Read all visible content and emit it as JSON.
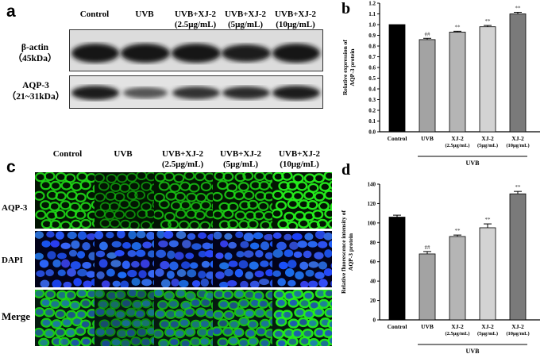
{
  "panel_a": {
    "letter": "a",
    "columns": [
      "Control",
      "UVB",
      "UVB+XJ-2\n(2.5μg/mL)",
      "UVB+XJ-2\n(5μg/mL)",
      "UVB+XJ-2\n(10μg/mL)"
    ],
    "rows": [
      {
        "name": "β-actin",
        "size": "（45kDa）"
      },
      {
        "name": "AQP-3",
        "size": "（21~31kDa）"
      }
    ]
  },
  "panel_c": {
    "letter": "c",
    "columns": [
      "Control",
      "UVB",
      "UVB+XJ-2\n(2.5μg/mL)",
      "UVB+XJ-2\n(5μg/mL)",
      "UVB+XJ-2\n(10μg/mL)"
    ],
    "rows": [
      "AQP-3",
      "DAPI",
      "Merge"
    ]
  },
  "chart_data": [
    {
      "panel": "b",
      "type": "bar",
      "categories": [
        "Control",
        "UVB",
        "XJ-2\n(2.5μg/mL)",
        "XJ-2\n(5μg/mL)",
        "XJ-2\n(10μg/mL)"
      ],
      "values": [
        1.0,
        0.86,
        0.93,
        0.98,
        1.1
      ],
      "errors": [
        0.0,
        0.012,
        0.008,
        0.012,
        0.015
      ],
      "annotations": [
        "",
        "##",
        "**",
        "**",
        "**"
      ],
      "colors": [
        "#000000",
        "#a3a3a3",
        "#b5b5b5",
        "#d3d3d3",
        "#7a7a7a"
      ],
      "ylabel": "Relative expression of\nAQP-3 protein",
      "yticks": [
        "0.0",
        "0.1",
        "0.2",
        "0.3",
        "0.4",
        "0.5",
        "0.6",
        "0.7",
        "0.8",
        "0.9",
        "1.0",
        "1.1",
        "1.2"
      ],
      "ylim": [
        0,
        1.2
      ],
      "group_label": "UVB"
    },
    {
      "panel": "d",
      "type": "bar",
      "categories": [
        "Control",
        "UVB",
        "XJ-2\n(2.5μg/mL)",
        "XJ-2\n(5μg/mL)",
        "XJ-2\n(10μg/mL)"
      ],
      "values": [
        106,
        68,
        86,
        95,
        130
      ],
      "errors": [
        2.0,
        2.5,
        1.5,
        4.0,
        2.5
      ],
      "annotations": [
        "",
        "##",
        "**",
        "**",
        "**"
      ],
      "colors": [
        "#000000",
        "#a3a3a3",
        "#b5b5b5",
        "#d3d3d3",
        "#7a7a7a"
      ],
      "ylabel": "Relative fluorescence intensity of\nAQP-3 protein",
      "yticks": [
        "0",
        "20",
        "40",
        "60",
        "80",
        "100",
        "120",
        "140"
      ],
      "ylim": [
        0,
        140
      ],
      "group_label": "UVB"
    }
  ]
}
